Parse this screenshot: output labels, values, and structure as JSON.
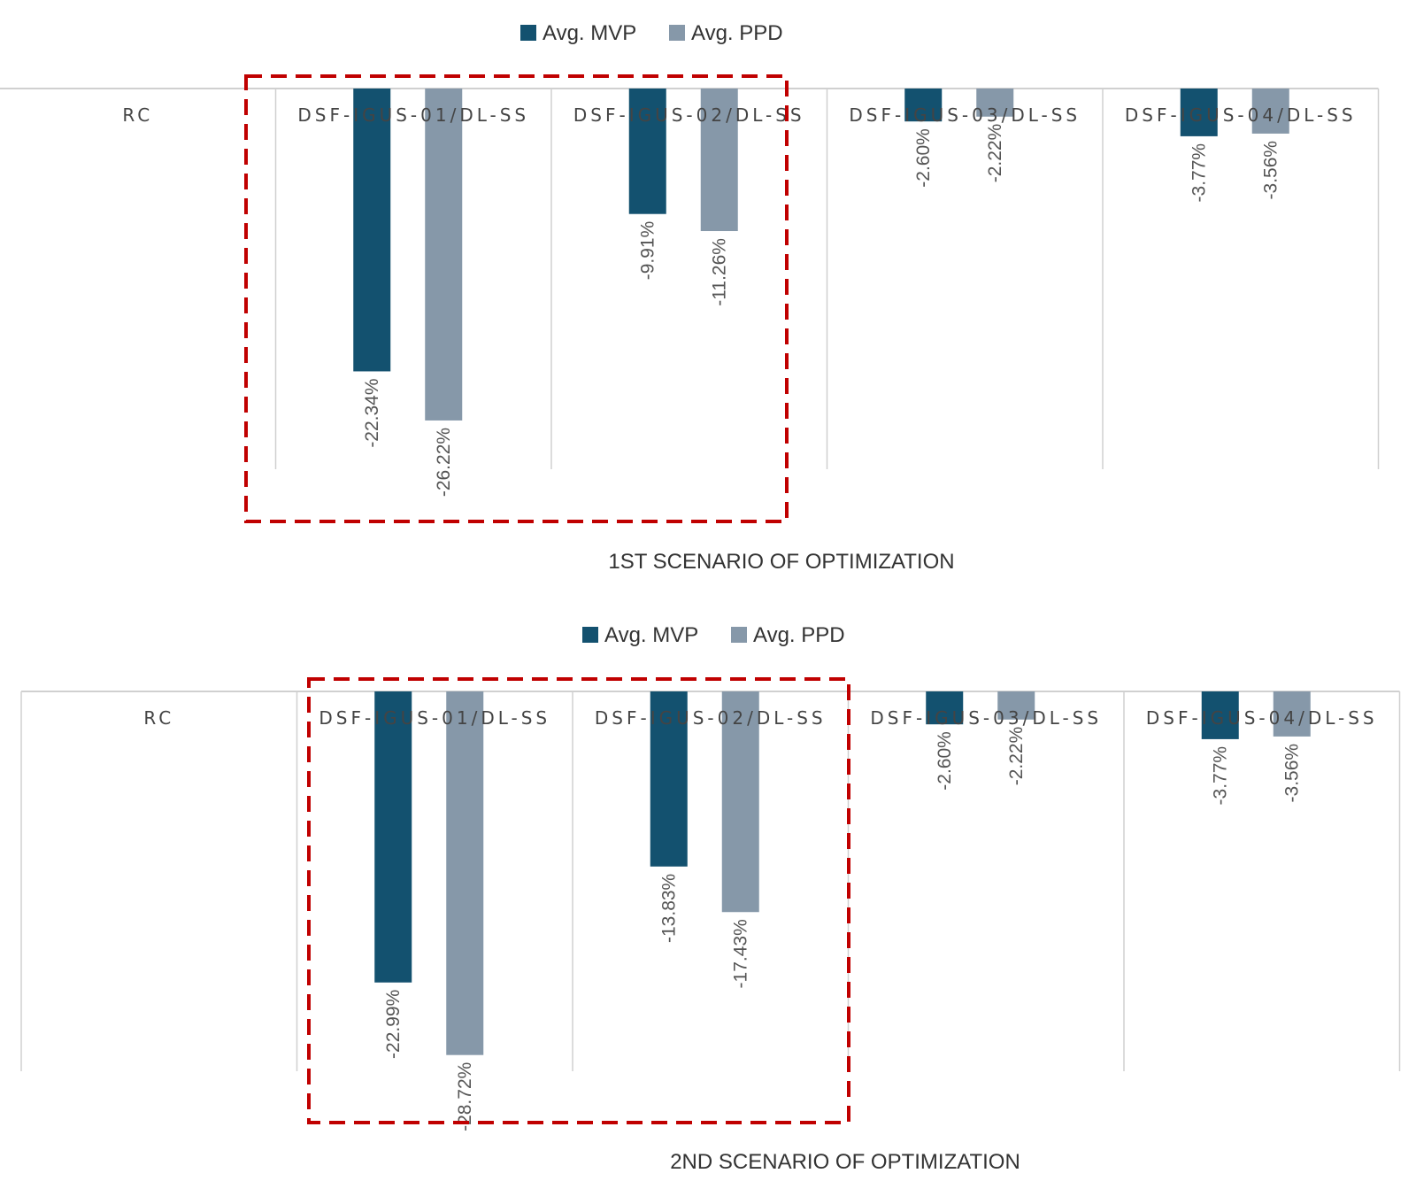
{
  "colors": {
    "mvp": "#13516f",
    "ppd": "#8698a9",
    "grid": "#d0d0d0",
    "highlight": "#c00000"
  },
  "chart_data": [
    {
      "type": "bar",
      "title": "1ST SCENARIO OF OPTIMIZATION",
      "categories": [
        "RC",
        "DSF-IGUS-01/DL-SS",
        "DSF-IGUS-02/DL-SS",
        "DSF-IGUS-03/DL-SS",
        "DSF-IGUS-04/DL-SS"
      ],
      "series": [
        {
          "name": "Avg. MVP",
          "values": [
            0,
            -22.34,
            -9.91,
            -2.6,
            -3.77
          ],
          "labels": [
            "",
            "-22.34%",
            "-9.91%",
            "-2.60%",
            "-3.77%"
          ]
        },
        {
          "name": "Avg. PPD",
          "values": [
            0,
            -26.22,
            -11.26,
            -2.22,
            -3.56
          ],
          "labels": [
            "",
            "-26.22%",
            "-11.26%",
            "-2.22%",
            "-3.56%"
          ]
        }
      ],
      "legend": "top-center",
      "highlighted_categories": [
        "DSF-IGUS-01/DL-SS",
        "DSF-IGUS-02/DL-SS"
      ],
      "ylim": [
        -30,
        0
      ]
    },
    {
      "type": "bar",
      "title": "2ND SCENARIO OF OPTIMIZATION",
      "categories": [
        "RC",
        "DSF-IGUS-01/DL-SS",
        "DSF-IGUS-02/DL-SS",
        "DSF-IGUS-03/DL-SS",
        "DSF-IGUS-04/DL-SS"
      ],
      "series": [
        {
          "name": "Avg. MVP",
          "values": [
            0,
            -22.99,
            -13.83,
            -2.6,
            -3.77
          ],
          "labels": [
            "",
            "-22.99%",
            "-13.83%",
            "-2.60%",
            "-3.77%"
          ]
        },
        {
          "name": "Avg. PPD",
          "values": [
            0,
            -28.72,
            -17.43,
            -2.22,
            -3.56
          ],
          "labels": [
            "",
            "-28.72%",
            "-17.43%",
            "-2.22%",
            "-3.56%"
          ]
        }
      ],
      "legend": "top-center",
      "highlighted_categories": [
        "DSF-IGUS-01/DL-SS",
        "DSF-IGUS-02/DL-SS"
      ],
      "ylim": [
        -30,
        0
      ]
    }
  ]
}
